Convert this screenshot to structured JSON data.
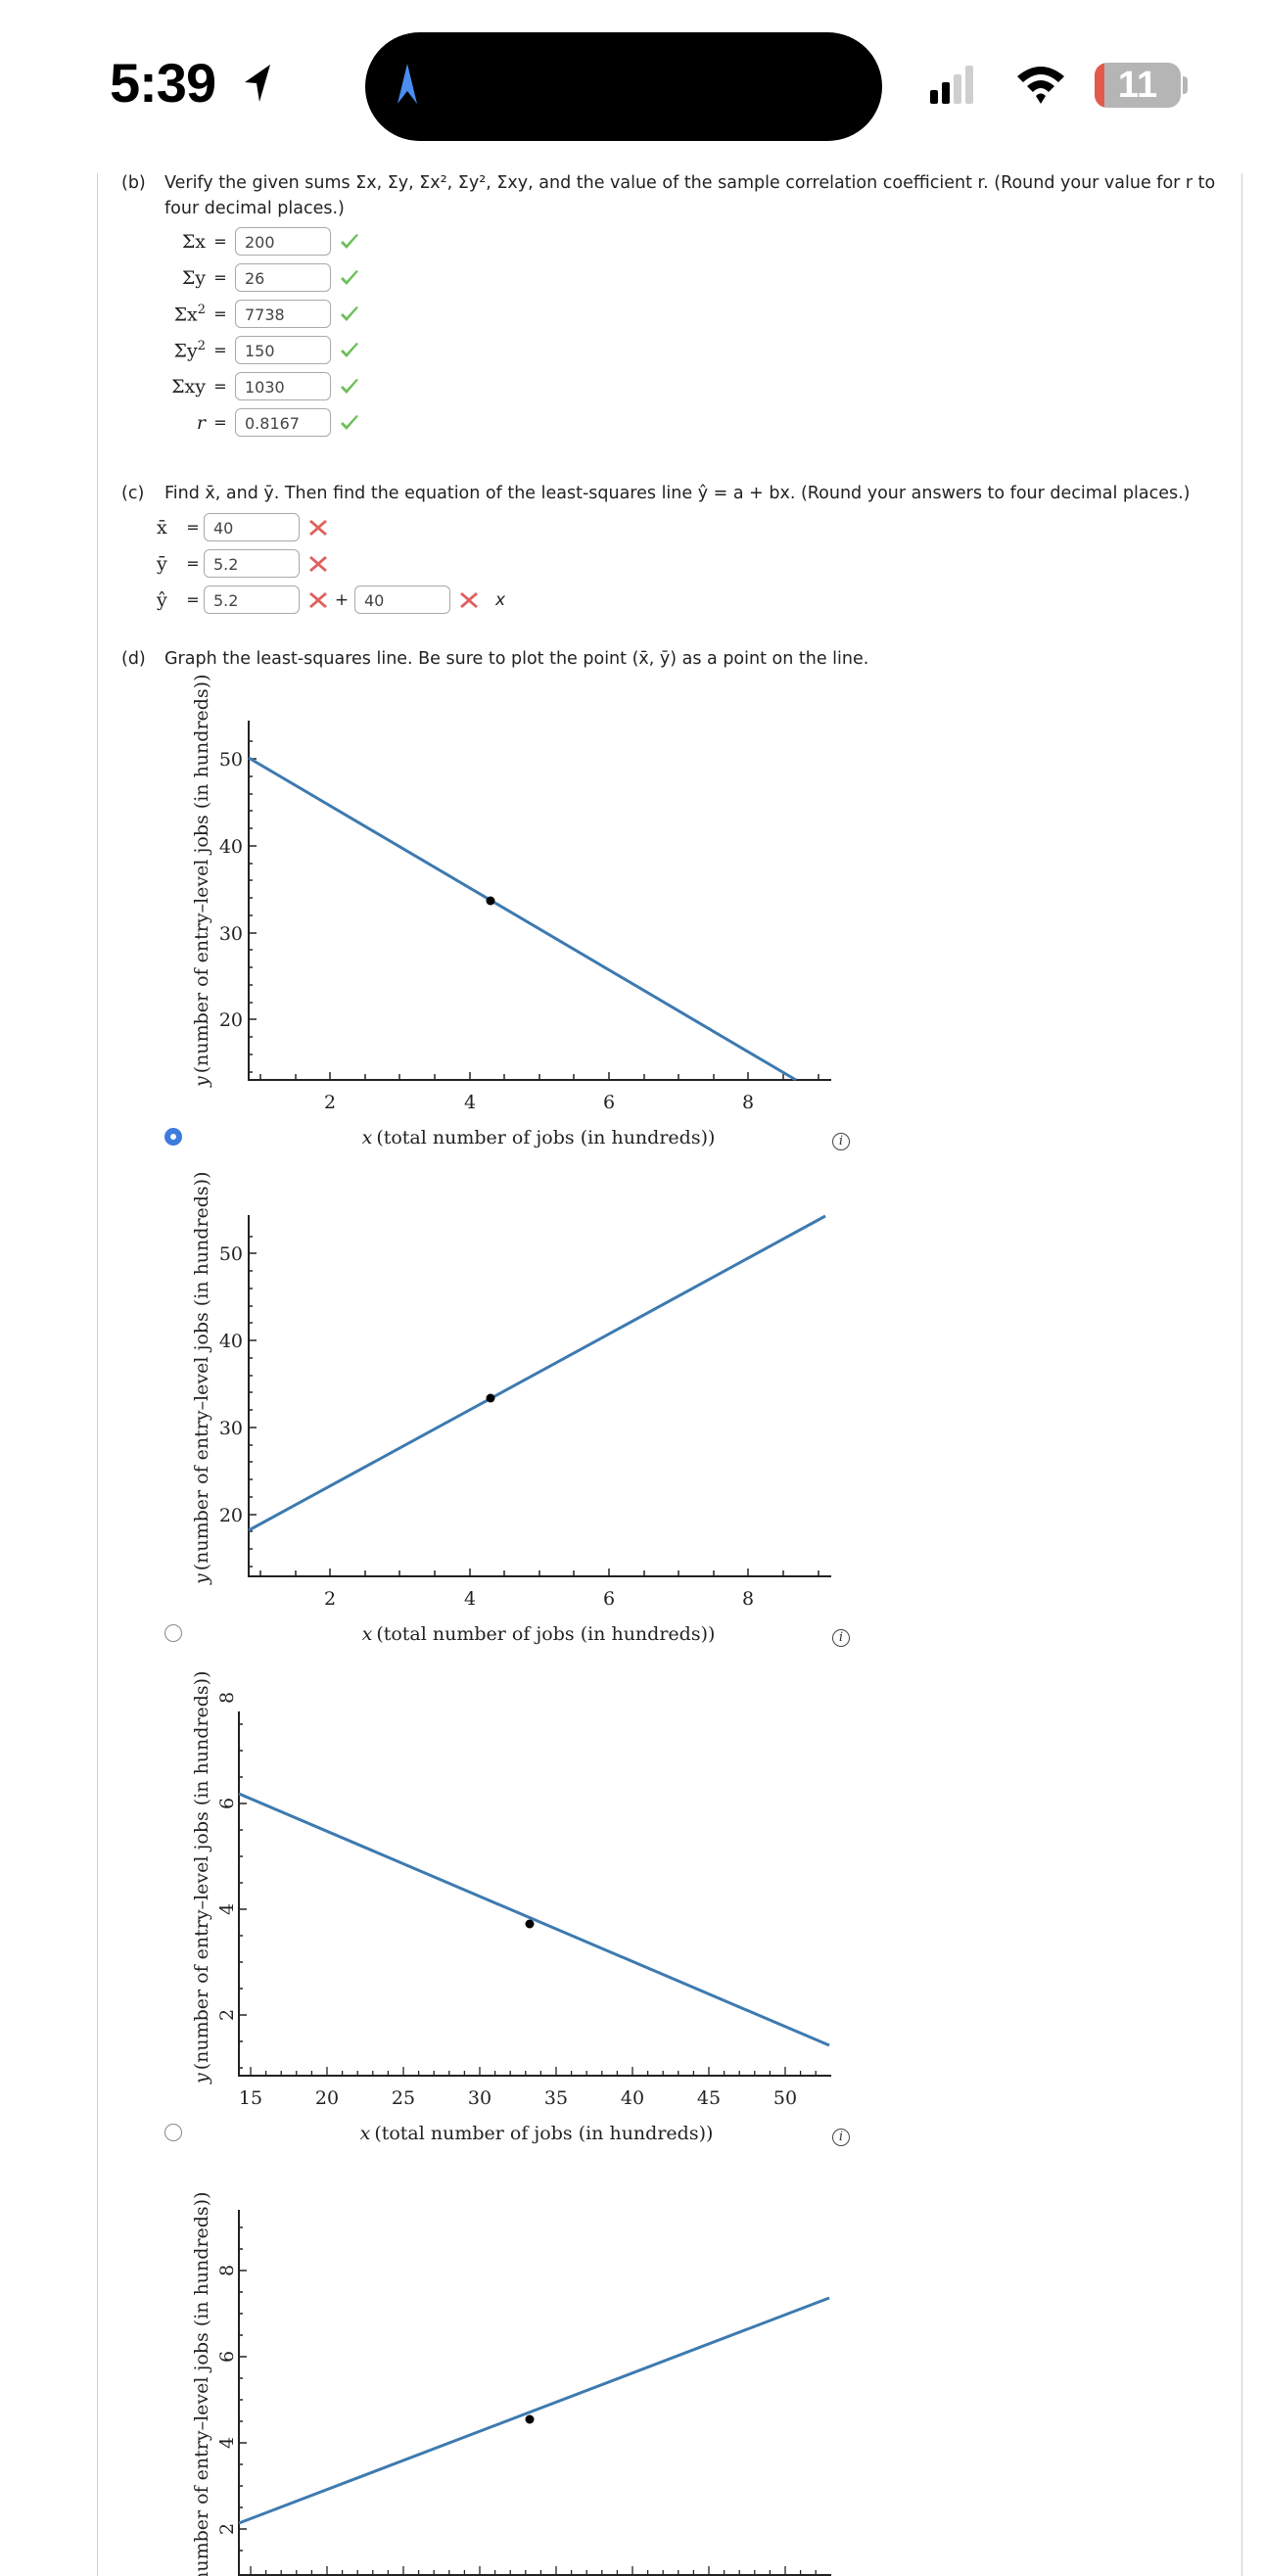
{
  "status_bar": {
    "time": "5:39",
    "battery_level": "11",
    "signal_bars_active": 2,
    "signal_bars_total": 4
  },
  "colors": {
    "accent_blue": "#3e7bde",
    "line_blue": "#3d7ab0",
    "check_green": "#6bbf59",
    "cross_red": "#e0605e",
    "battery_red": "#e35a4c"
  },
  "part_b": {
    "label": "(b)",
    "prompt_line1": "Verify the given sums Σx, Σy, Σx², Σy², Σxy, and the value of the sample correlation coefficient r. (Round your value for r to",
    "prompt_line2": "four decimal places.)",
    "fields": [
      {
        "name": "Σx",
        "sup": "",
        "eq": "=",
        "value": "200",
        "status": "correct"
      },
      {
        "name": "Σy",
        "sup": "",
        "eq": "=",
        "value": "26",
        "status": "correct"
      },
      {
        "name": "Σx",
        "sup": "2",
        "eq": "=",
        "value": "7738",
        "status": "correct"
      },
      {
        "name": "Σy",
        "sup": "2",
        "eq": "=",
        "value": "150",
        "status": "correct"
      },
      {
        "name": "Σxy",
        "sup": "",
        "eq": "=",
        "value": "1030",
        "status": "correct"
      },
      {
        "name": "r",
        "sup": "",
        "eq": "=",
        "value": "0.8167",
        "status": "correct"
      }
    ]
  },
  "part_c": {
    "label": "(c)",
    "prompt": "Find x̄, and ȳ. Then find the equation of the least-squares line ŷ = a + bx. (Round your answers to four decimal places.)",
    "fields": [
      {
        "name": "x̄",
        "eq": "=",
        "value": "40",
        "status": "incorrect"
      },
      {
        "name": "ȳ",
        "eq": "=",
        "value": "5.2",
        "status": "incorrect"
      }
    ],
    "equation": {
      "name": "ŷ",
      "eq": "=",
      "a_value": "5.2",
      "a_status": "incorrect",
      "plus": "+",
      "b_value": "40",
      "b_status": "incorrect",
      "var": "x"
    }
  },
  "part_d": {
    "label": "(d)",
    "prompt": "Graph the least-squares line. Be sure to plot the point (x̄, ȳ) as a point on the line.",
    "selected_option": 0
  },
  "chart_data": [
    {
      "type": "line",
      "option_index": 0,
      "selected": true,
      "xlabel": "x (total number of jobs (in hundreds))",
      "ylabel": "y (number of entry–level jobs (in hundreds))",
      "xticks": [
        "2",
        "4",
        "6",
        "8"
      ],
      "yticks": [
        "20",
        "30",
        "40",
        "50"
      ],
      "xlim": [
        0.7,
        9.2
      ],
      "ylim": [
        13,
        54
      ],
      "series": [
        {
          "name": "least-squares line",
          "x": [
            0.7,
            8.7
          ],
          "y": [
            50,
            13
          ]
        }
      ],
      "point": {
        "x": 4.33,
        "y": 33.3
      }
    },
    {
      "type": "line",
      "option_index": 1,
      "selected": false,
      "xlabel": "x (total number of jobs (in hundreds))",
      "ylabel": "y (number of entry–level jobs (in hundreds))",
      "xticks": [
        "2",
        "4",
        "6",
        "8"
      ],
      "yticks": [
        "20",
        "30",
        "40",
        "50"
      ],
      "xlim": [
        0.7,
        9.2
      ],
      "ylim": [
        13,
        54
      ],
      "series": [
        {
          "name": "least-squares line",
          "x": [
            0.7,
            9.1
          ],
          "y": [
            18,
            54
          ]
        }
      ],
      "point": {
        "x": 4.33,
        "y": 33.3
      }
    },
    {
      "type": "line",
      "option_index": 2,
      "selected": false,
      "xlabel": "x (total number of jobs (in hundreds))",
      "ylabel": "y (number of entry–level jobs (in hundreds))",
      "xticks": [
        "15",
        "20",
        "25",
        "30",
        "35",
        "40",
        "45",
        "50"
      ],
      "yticks": [
        "2",
        "4",
        "6",
        "8"
      ],
      "xlim": [
        14.3,
        52.9
      ],
      "ylim": [
        0.6,
        9.5
      ],
      "series": [
        {
          "name": "least-squares line",
          "x": [
            14.3,
            52.8
          ],
          "y": [
            7.45,
            1.2
          ]
        }
      ],
      "point": {
        "x": 33.3,
        "y": 4.33
      }
    },
    {
      "type": "line",
      "option_index": 3,
      "selected": false,
      "xlabel": "x (total number of jobs (in hundreds))",
      "ylabel": "y (number of entry–level jobs (in hundreds))",
      "xticks": [
        "15",
        "20",
        "25",
        "30",
        "35",
        "40",
        "45",
        "50"
      ],
      "yticks": [
        "2",
        "4",
        "6",
        "8"
      ],
      "xlim": [
        14.3,
        52.9
      ],
      "ylim": [
        0.6,
        9.5
      ],
      "series": [
        {
          "name": "least-squares line",
          "x": [
            14.3,
            52.8
          ],
          "y": [
            1.4,
            7.3
          ]
        }
      ],
      "point": {
        "x": 33.3,
        "y": 4.33
      }
    }
  ],
  "chart_labels": {
    "xlabel_var": "x",
    "xlabel_text": "(total number of jobs (in hundreds))",
    "ylabel_var": "y",
    "ylabel_text": "(number of entry–level jobs (in hundreds))",
    "info_glyph": "i"
  }
}
